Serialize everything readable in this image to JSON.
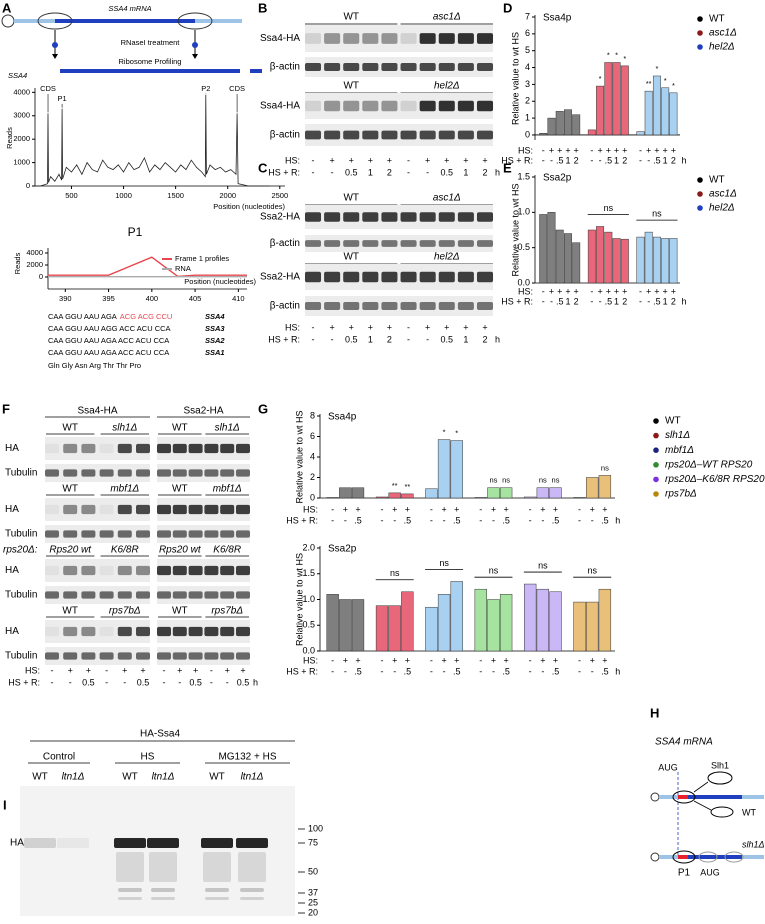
{
  "panel_labels": [
    "A",
    "B",
    "C",
    "D",
    "E",
    "F",
    "G",
    "H",
    "I"
  ],
  "chart_data": [
    {
      "type": "line",
      "ylabel": "Reads",
      "xlabel": "Position (nucleotides)",
      "xlim": [
        150,
        2550
      ],
      "ylim": [
        0,
        4100
      ],
      "xticks": [
        500,
        1000,
        1500,
        2000,
        2500
      ],
      "yticks": [
        0,
        1000,
        2000,
        3000,
        4000
      ],
      "series": [
        {
          "color": "#222222",
          "x": [
            150,
            200,
            240,
            270,
            275,
            280,
            300,
            340,
            380,
            405,
            410,
            415,
            450,
            500,
            550,
            600,
            650,
            700,
            750,
            800,
            850,
            900,
            950,
            1000,
            1050,
            1100,
            1150,
            1200,
            1250,
            1300,
            1350,
            1400,
            1450,
            1500,
            1550,
            1600,
            1650,
            1700,
            1750,
            1785,
            1790,
            1795,
            1830,
            1880,
            1930,
            1980,
            2030,
            2080,
            2090,
            2100,
            2200,
            2400
          ],
          "values": [
            0,
            0,
            50,
            100,
            3100,
            150,
            400,
            200,
            500,
            250,
            3300,
            300,
            800,
            600,
            900,
            500,
            1000,
            700,
            600,
            1100,
            800,
            700,
            900,
            600,
            1000,
            700,
            800,
            1200,
            600,
            900,
            700,
            1000,
            800,
            600,
            900,
            700,
            1100,
            800,
            600,
            400,
            3900,
            500,
            900,
            700,
            800,
            600,
            700,
            500,
            3100,
            100,
            0,
            0
          ]
        }
      ],
      "annotations": [
        {
          "text": "CDS",
          "x": 275
        },
        {
          "text": "P1",
          "x": 410
        },
        {
          "text": "P2",
          "x": 1790
        },
        {
          "text": "CDS",
          "x": 2090
        }
      ]
    },
    {
      "type": "line",
      "title": "P1",
      "ylabel": "Reads",
      "xlabel": "Position (nucleotides)",
      "xlim": [
        388,
        411
      ],
      "ylim": [
        0,
        4500
      ],
      "xticks": [
        390,
        395,
        400,
        405,
        410
      ],
      "yticks": [
        0,
        2000,
        4000
      ],
      "series": [
        {
          "name": "Frame 1 profiles",
          "color": "#e8474f",
          "x": [
            388,
            390,
            395,
            400,
            403,
            405,
            408,
            411
          ],
          "values": [
            300,
            300,
            300,
            3300,
            100,
            300,
            300,
            300
          ]
        },
        {
          "name": "RNA",
          "color": "#aaaaaa",
          "x": [
            388,
            411
          ],
          "values": [
            50,
            50
          ]
        }
      ]
    },
    {
      "type": "bar",
      "title": "Ssa4p",
      "ylabel": "Relative value to wt HS",
      "ylim": [
        -0.3,
        7
      ],
      "yticks": [
        0,
        1,
        2,
        3,
        4,
        5,
        6,
        7
      ],
      "hs_label": "HS:",
      "hsr_label": "HS + R:",
      "unit": "h",
      "series": [
        {
          "name": "WT",
          "color": "#7f7f7f",
          "dot_color": "#000000",
          "values": [
            0.1,
            1.0,
            1.4,
            1.5,
            1.2
          ],
          "hs": [
            "-",
            "+",
            "+",
            "+",
            "+"
          ],
          "hsr": [
            "-",
            "-",
            ".5",
            "1",
            "2"
          ]
        },
        {
          "name": "asc1Δ",
          "color": "#e8677a",
          "dot_color": "#8b1a1a",
          "values": [
            0.3,
            2.9,
            4.3,
            4.3,
            4.1
          ],
          "significance": [
            null,
            "*",
            "*",
            "*",
            "*"
          ],
          "hs": [
            "-",
            "+",
            "+",
            "+",
            "+"
          ],
          "hsr": [
            "-",
            "-",
            ".5",
            "1",
            "2"
          ]
        },
        {
          "name": "hel2Δ",
          "color": "#a8d0f0",
          "dot_color": "#1f3fbf",
          "values": [
            0.2,
            2.6,
            3.5,
            2.8,
            2.5
          ],
          "significance": [
            null,
            "**",
            "*",
            "*",
            "*"
          ],
          "hs": [
            "-",
            "+",
            "+",
            "+",
            "+"
          ],
          "hsr": [
            "-",
            "-",
            ".5",
            "1",
            "2"
          ]
        }
      ]
    },
    {
      "type": "bar",
      "title": "Ssa2p",
      "ylabel": "Relative value to wt HS",
      "ylim": [
        0,
        1.5
      ],
      "yticks": [
        {
          "value": 0,
          "label": "0.0"
        },
        0.5,
        {
          "value": 1,
          "label": "1.0"
        },
        1.5
      ],
      "hs_label": "HS:",
      "hsr_label": "HS + R:",
      "unit": "h",
      "series": [
        {
          "name": "WT",
          "color": "#7f7f7f",
          "dot_color": "#000000",
          "values": [
            0.97,
            1.0,
            0.75,
            0.7,
            0.57
          ],
          "hs": [
            "-",
            "+",
            "+",
            "+",
            "+"
          ],
          "hsr": [
            "-",
            "-",
            ".5",
            "1",
            "2"
          ]
        },
        {
          "name": "asc1Δ",
          "color": "#e8677a",
          "dot_color": "#8b1a1a",
          "values": [
            0.75,
            0.8,
            0.72,
            0.63,
            0.62
          ],
          "group_annotation": "ns",
          "hs": [
            "-",
            "+",
            "+",
            "+",
            "+"
          ],
          "hsr": [
            "-",
            "-",
            ".5",
            "1",
            "2"
          ]
        },
        {
          "name": "hel2Δ",
          "color": "#a8d0f0",
          "dot_color": "#1f3fbf",
          "values": [
            0.65,
            0.72,
            0.65,
            0.63,
            0.63
          ],
          "group_annotation": "ns",
          "hs": [
            "-",
            "+",
            "+",
            "+",
            "+"
          ],
          "hsr": [
            "-",
            "-",
            ".5",
            "1",
            "2"
          ]
        }
      ]
    },
    {
      "type": "bar",
      "title": "Ssa4p",
      "ylabel": "Relative value to wt HS",
      "ylim": [
        0,
        8
      ],
      "yticks": [
        0,
        2,
        4,
        6,
        8
      ],
      "hs_label": "HS:",
      "hsr_label": "HS + R:",
      "unit": "h",
      "series": [
        {
          "name": "WT",
          "color": "#7f7f7f",
          "dot_color": "#000000",
          "values": [
            0.05,
            1.0,
            1.0
          ],
          "hs": [
            "-",
            "+",
            "+"
          ],
          "hsr": [
            "-",
            "-",
            ".5"
          ]
        },
        {
          "name": "slh1Δ",
          "color": "#e8677a",
          "dot_color": "#8b1a1a",
          "values": [
            0.1,
            0.5,
            0.4
          ],
          "significance": [
            null,
            "**",
            "**"
          ],
          "hs": [
            "-",
            "+",
            "+"
          ],
          "hsr": [
            "-",
            "-",
            ".5"
          ]
        },
        {
          "name": "mbf1Δ",
          "color": "#a8d0f0",
          "dot_color": "#1a237e",
          "values": [
            0.9,
            5.7,
            5.6
          ],
          "significance": [
            null,
            "*",
            "*"
          ],
          "hs": [
            "-",
            "+",
            "+"
          ],
          "hsr": [
            "-",
            "-",
            ".5"
          ]
        },
        {
          "name": "rps20Δ–WT RPS20",
          "color": "#a6e3a1",
          "dot_color": "#2e8b2e",
          "values": [
            0.05,
            1.0,
            1.0
          ],
          "significance": [
            null,
            "ns",
            "ns"
          ],
          "hs": [
            "-",
            "+",
            "+"
          ],
          "hsr": [
            "-",
            "-",
            ".5"
          ]
        },
        {
          "name": "rps20Δ–K6/8R RPS20",
          "color": "#c9b8f5",
          "dot_color": "#7b2fe0",
          "values": [
            0.1,
            1.0,
            1.0
          ],
          "significance": [
            null,
            "ns",
            "ns"
          ],
          "hs": [
            "-",
            "+",
            "+"
          ],
          "hsr": [
            "-",
            "-",
            ".5"
          ]
        },
        {
          "name": "rps7bΔ",
          "color": "#e8c07a",
          "dot_color": "#b8860b",
          "values": [
            0.05,
            2.0,
            2.2
          ],
          "significance": [
            null,
            null,
            "ns"
          ],
          "hs": [
            "-",
            "+",
            "+"
          ],
          "hsr": [
            "-",
            "-",
            ".5"
          ]
        }
      ]
    },
    {
      "type": "bar",
      "title": "Ssa2p",
      "ylabel": "Relative value to wt HS",
      "ylim": [
        0,
        2
      ],
      "yticks": [
        {
          "value": 0,
          "label": "0.0"
        },
        0.5,
        {
          "value": 1,
          "label": "1.0"
        },
        1.5,
        {
          "value": 2,
          "label": "2.0"
        }
      ],
      "hs_label": "HS:",
      "hsr_label": "HS + R:",
      "unit": "h",
      "series": [
        {
          "color": "#7f7f7f",
          "values": [
            1.1,
            1.0,
            1.0
          ],
          "hs": [
            "-",
            "+",
            "+"
          ],
          "hsr": [
            "-",
            "-",
            ".5"
          ]
        },
        {
          "color": "#e8677a",
          "values": [
            0.88,
            0.88,
            1.15
          ],
          "group_annotation": "ns",
          "hs": [
            "-",
            "+",
            "+"
          ],
          "hsr": [
            "-",
            "-",
            ".5"
          ]
        },
        {
          "color": "#a8d0f0",
          "values": [
            0.85,
            1.1,
            1.35
          ],
          "group_annotation": "ns",
          "hs": [
            "-",
            "+",
            "+"
          ],
          "hsr": [
            "-",
            "-",
            ".5"
          ]
        },
        {
          "color": "#a6e3a1",
          "values": [
            1.2,
            1.0,
            1.1
          ],
          "group_annotation": "ns",
          "hs": [
            "-",
            "+",
            "+"
          ],
          "hsr": [
            "-",
            "-",
            ".5"
          ]
        },
        {
          "color": "#c9b8f5",
          "values": [
            1.3,
            1.2,
            1.15
          ],
          "group_annotation": "ns",
          "hs": [
            "-",
            "+",
            "+"
          ],
          "hsr": [
            "-",
            "-",
            ".5"
          ]
        },
        {
          "color": "#e8c07a",
          "values": [
            0.95,
            0.95,
            1.2
          ],
          "group_annotation": "ns",
          "hs": [
            "-",
            "+",
            "+"
          ],
          "hsr": [
            "-",
            "-",
            ".5"
          ]
        }
      ]
    }
  ],
  "panel_A": {
    "mrna": "SSA4 mRNA",
    "step1": "RNaseI treatment",
    "step2": "Ribosome Profiling",
    "gene": "SSA4",
    "sequences": [
      {
        "plain": "CAA GGU AAU AGA",
        "highlight": "ACG ACG CCU",
        "gene": "SSA4"
      },
      {
        "plain": "CAA GGU AAU AGG ACC ACU CCA",
        "gene": "SSA3"
      },
      {
        "plain": "CAA GGU AAU AGA ACC ACU CCA",
        "gene": "SSA2"
      },
      {
        "plain": "CAA GGU AAU AGA ACC ACU CCA",
        "gene": "SSA1"
      }
    ],
    "amino_acids": "Gln Gly Asn Arg Thr Thr Pro"
  },
  "panel_B": {
    "groups": [
      {
        "labels": [
          "WT",
          "asc1Δ"
        ],
        "rows": [
          "Ssa4-HA",
          "β-actin"
        ]
      },
      {
        "labels": [
          "WT",
          "hel2Δ"
        ],
        "rows": [
          "Ssa4-HA",
          "β-actin"
        ]
      }
    ],
    "hs_label": "HS:",
    "hsr_label": "HS + R:",
    "hs": [
      "-",
      "+",
      "+",
      "+",
      "+",
      "-",
      "+",
      "+",
      "+",
      "+"
    ],
    "hsr": [
      "-",
      "-",
      "0.5",
      "1",
      "2",
      "-",
      "-",
      "0.5",
      "1",
      "2"
    ],
    "unit": "h"
  },
  "panel_C": {
    "groups": [
      {
        "labels": [
          "WT",
          "asc1Δ"
        ],
        "rows": [
          "Ssa2-HA",
          "β-actin"
        ]
      },
      {
        "labels": [
          "WT",
          "hel2Δ"
        ],
        "rows": [
          "Ssa2-HA",
          "β-actin"
        ]
      }
    ],
    "hs_label": "HS:",
    "hsr_label": "HS + R:",
    "hs": [
      "-",
      "+",
      "+",
      "+",
      "+",
      "-",
      "+",
      "+",
      "+",
      "+"
    ],
    "hsr": [
      "-",
      "-",
      "0.5",
      "1",
      "2",
      "-",
      "-",
      "0.5",
      "1",
      "2"
    ],
    "unit": "h"
  },
  "panel_F": {
    "headers": [
      "Ssa4-HA",
      "Ssa2-HA"
    ],
    "groups": [
      {
        "labels": [
          "WT",
          "slh1Δ",
          "WT",
          "slh1Δ"
        ],
        "rows": [
          "HA",
          "Tubulin"
        ]
      },
      {
        "labels": [
          "WT",
          "mbf1Δ",
          "WT",
          "mbf1Δ"
        ],
        "rows": [
          "HA",
          "Tubulin"
        ]
      },
      {
        "prefix": "rps20Δ:",
        "labels": [
          "Rps20 wt",
          "K6/8R",
          "Rps20 wt",
          "K6/8R"
        ],
        "rows": [
          "HA",
          "Tubulin"
        ]
      },
      {
        "labels": [
          "WT",
          "rps7bΔ",
          "WT",
          "rps7bΔ"
        ],
        "rows": [
          "HA",
          "Tubulin"
        ]
      }
    ],
    "hs_label": "HS:",
    "hsr_label": "HS + R:",
    "hs": [
      "-",
      "+",
      "+",
      "-",
      "+",
      "+",
      "-",
      "+",
      "+",
      "-",
      "+",
      "+"
    ],
    "hsr": [
      "-",
      "-",
      "0.5",
      "-",
      "-",
      "0.5",
      "-",
      "-",
      "0.5",
      "-",
      "-",
      "0.5"
    ],
    "unit": "h"
  },
  "panel_H": {
    "title": "SSA4 mRNA",
    "aug": "AUG",
    "factor": "Slh1",
    "wt": "WT",
    "mutant": "slh1Δ",
    "peak": "P1",
    "aug2": "AUG"
  },
  "panel_I": {
    "title": "HA-Ssa4",
    "conditions": [
      "Control",
      "HS",
      "MG132 + HS"
    ],
    "lanes": [
      "WT",
      "ltn1Δ",
      "WT",
      "ltn1Δ",
      "WT",
      "ltn1Δ"
    ],
    "row": "HA",
    "markers": [
      100,
      75,
      50,
      37,
      25,
      20
    ]
  }
}
